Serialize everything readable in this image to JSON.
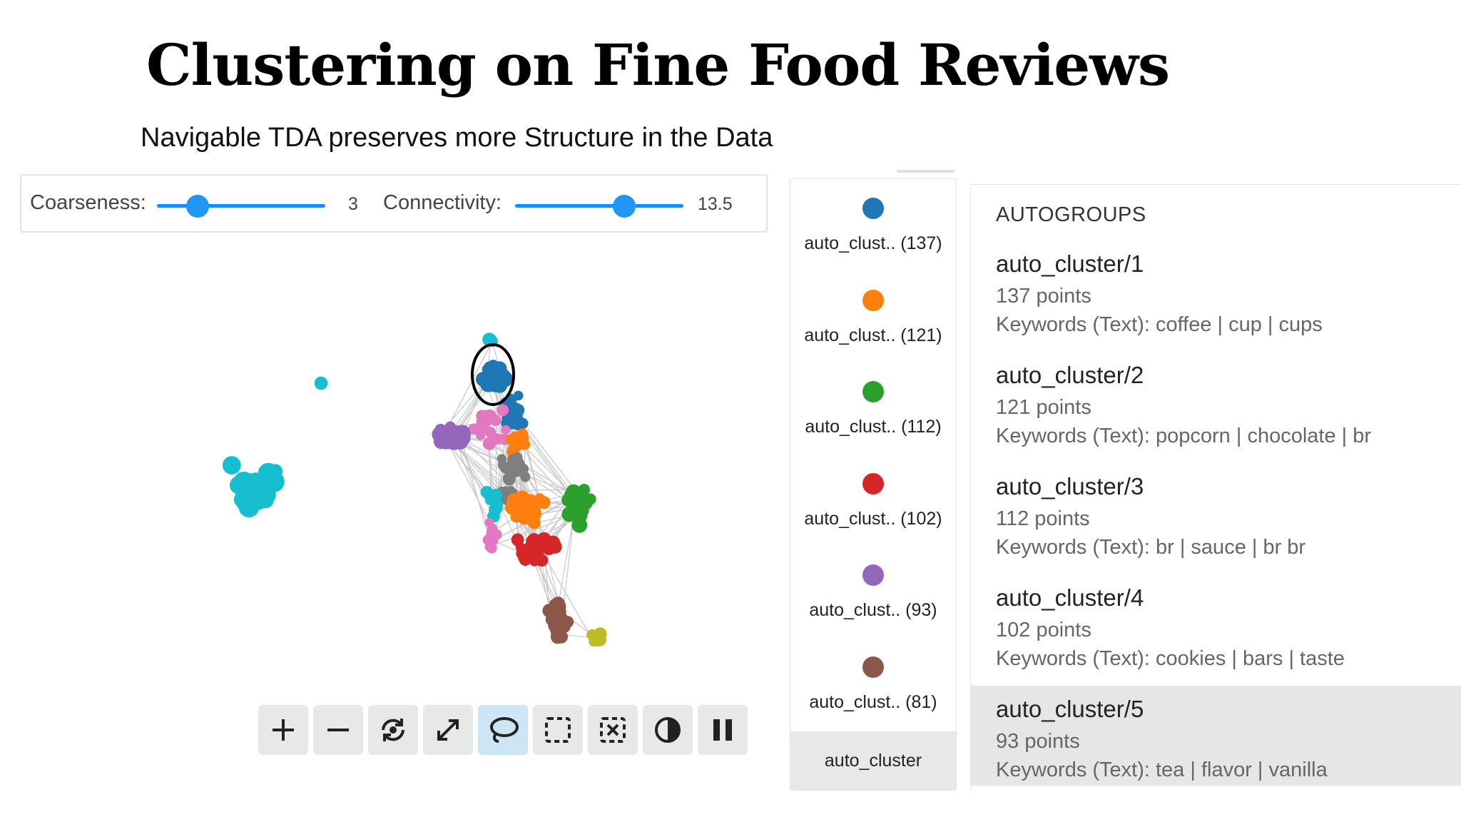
{
  "slide": {
    "title": "Clustering on Fine Food Reviews",
    "subtitle": "Navigable TDA preserves more Structure in the Data"
  },
  "controls": {
    "coarseness": {
      "label": "Coarseness:",
      "value": "3",
      "fraction": 0.24
    },
    "connectivity": {
      "label": "Connectivity:",
      "value": "13.5",
      "fraction": 0.65
    }
  },
  "toolbar": [
    {
      "name": "zoom-in-button",
      "icon": "plus-icon",
      "active": false
    },
    {
      "name": "zoom-out-button",
      "icon": "minus-icon",
      "active": false
    },
    {
      "name": "reset-view-button",
      "icon": "rotate-reset-icon",
      "active": false
    },
    {
      "name": "fit-view-button",
      "icon": "expand-arrows-icon",
      "active": false
    },
    {
      "name": "lasso-select-button",
      "icon": "lasso-icon",
      "active": true
    },
    {
      "name": "box-select-button",
      "icon": "dashed-square-icon",
      "active": false
    },
    {
      "name": "clear-selection-button",
      "icon": "dashed-square-x-icon",
      "active": false
    },
    {
      "name": "contrast-toggle-button",
      "icon": "contrast-icon",
      "active": false
    },
    {
      "name": "pause-layout-button",
      "icon": "pause-icon",
      "active": false
    }
  ],
  "legend": {
    "items": [
      {
        "label": "auto_clust.. (137)",
        "color": "#1f77b4"
      },
      {
        "label": "auto_clust.. (121)",
        "color": "#ff7f0e"
      },
      {
        "label": "auto_clust.. (112)",
        "color": "#2ca02c"
      },
      {
        "label": "auto_clust.. (102)",
        "color": "#d62728"
      },
      {
        "label": "auto_clust.. (93)",
        "color": "#9467bd"
      },
      {
        "label": "auto_clust.. (81)",
        "color": "#8c564b"
      }
    ],
    "footer": "auto_cluster"
  },
  "autogroups": {
    "heading": "AUTOGROUPS",
    "groups": [
      {
        "name": "auto_cluster/1",
        "points": "137 points",
        "keywords": "Keywords (Text): coffee | cup | cups",
        "highlighted": false
      },
      {
        "name": "auto_cluster/2",
        "points": "121 points",
        "keywords": "Keywords (Text): popcorn | chocolate | br",
        "highlighted": false
      },
      {
        "name": "auto_cluster/3",
        "points": "112 points",
        "keywords": "Keywords (Text): br | sauce | br br",
        "highlighted": false
      },
      {
        "name": "auto_cluster/4",
        "points": "102 points",
        "keywords": "Keywords (Text): cookies | bars | taste",
        "highlighted": false
      },
      {
        "name": "auto_cluster/5",
        "points": "93 points",
        "keywords": "Keywords (Text): tea | flavor | vanilla",
        "highlighted": true
      }
    ]
  },
  "graph": {
    "cluster_colors": {
      "c1": "#1f77b4",
      "c2": "#ff7f0e",
      "c3": "#2ca02c",
      "c4": "#d62728",
      "c5": "#9467bd",
      "c6": "#8c564b",
      "c7": "#e377c2",
      "c8": "#7f7f7f",
      "c9": "#bcbd22",
      "c10": "#17becf"
    }
  }
}
